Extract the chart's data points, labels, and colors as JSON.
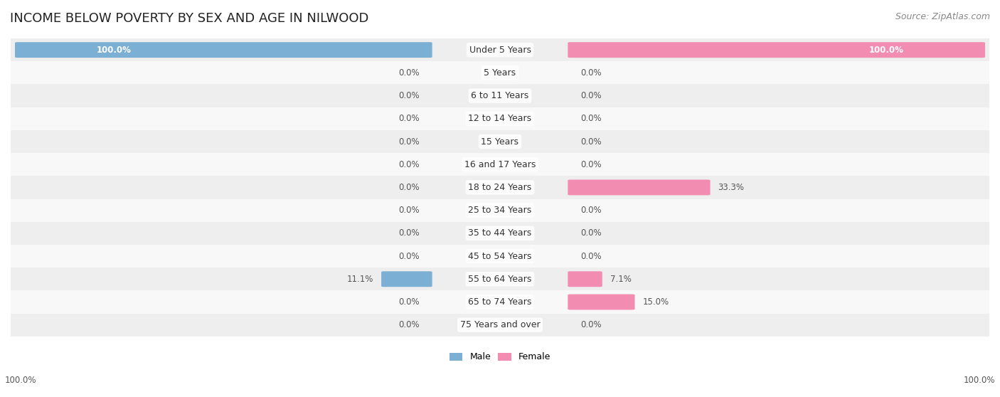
{
  "title": "INCOME BELOW POVERTY BY SEX AND AGE IN NILWOOD",
  "source": "Source: ZipAtlas.com",
  "categories": [
    "Under 5 Years",
    "5 Years",
    "6 to 11 Years",
    "12 to 14 Years",
    "15 Years",
    "16 and 17 Years",
    "18 to 24 Years",
    "25 to 34 Years",
    "35 to 44 Years",
    "45 to 54 Years",
    "55 to 64 Years",
    "65 to 74 Years",
    "75 Years and over"
  ],
  "male_values": [
    100.0,
    0.0,
    0.0,
    0.0,
    0.0,
    0.0,
    0.0,
    0.0,
    0.0,
    0.0,
    11.1,
    0.0,
    0.0
  ],
  "female_values": [
    100.0,
    0.0,
    0.0,
    0.0,
    0.0,
    0.0,
    33.3,
    0.0,
    0.0,
    0.0,
    7.1,
    15.0,
    0.0
  ],
  "male_color": "#7bafd4",
  "female_color": "#f28cb1",
  "male_label": "Male",
  "female_label": "Female",
  "max_val": 100.0,
  "bg_color": "#ffffff",
  "row_bg_odd": "#eeeeee",
  "row_bg_even": "#f8f8f8",
  "title_fontsize": 13,
  "label_fontsize": 9,
  "value_fontsize": 8.5,
  "source_fontsize": 9
}
